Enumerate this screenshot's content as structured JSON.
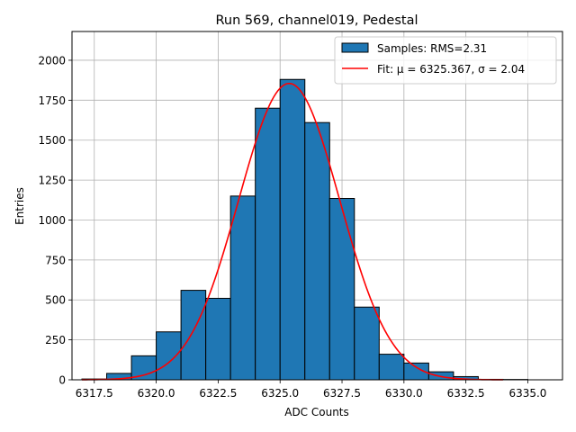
{
  "chart_data": {
    "type": "bar",
    "title": "Run 569, channel019, Pedestal",
    "xlabel": "ADC Counts",
    "ylabel": "Entries",
    "xlim": [
      6316.6,
      6336.4
    ],
    "ylim": [
      0,
      2180
    ],
    "grid": true,
    "legend_position": "top-right",
    "x_ticks": [
      6317.5,
      6320.0,
      6322.5,
      6325.0,
      6327.5,
      6330.0,
      6332.5,
      6335.0
    ],
    "x_tick_labels": [
      "6317.5",
      "6320.0",
      "6322.5",
      "6325.0",
      "6327.5",
      "6330.0",
      "6332.5",
      "6335.0"
    ],
    "y_ticks": [
      0,
      250,
      500,
      750,
      1000,
      1250,
      1500,
      1750,
      2000
    ],
    "y_tick_labels": [
      "0",
      "250",
      "500",
      "750",
      "1000",
      "1250",
      "1500",
      "1750",
      "2000"
    ],
    "bin_edges": [
      6317,
      6318,
      6319,
      6320,
      6321,
      6322,
      6323,
      6324,
      6325,
      6326,
      6327,
      6328,
      6329,
      6330,
      6331,
      6332,
      6333,
      6334,
      6335,
      6336
    ],
    "series": [
      {
        "name": "Samples: RMS=2.31",
        "kind": "histogram",
        "color": "#1f77b4",
        "edgecolor": "#000000",
        "values": [
          5,
          40,
          150,
          300,
          560,
          510,
          1150,
          1700,
          1880,
          1610,
          1135,
          455,
          160,
          105,
          50,
          20,
          3,
          2,
          0
        ]
      },
      {
        "name": "Fit: μ = 6325.367, σ = 2.04",
        "kind": "gaussian_fit",
        "color": "#ff0000",
        "mu": 6325.367,
        "sigma": 2.04,
        "amplitude": 1855,
        "x_range": [
          6317,
          6334
        ]
      }
    ]
  }
}
